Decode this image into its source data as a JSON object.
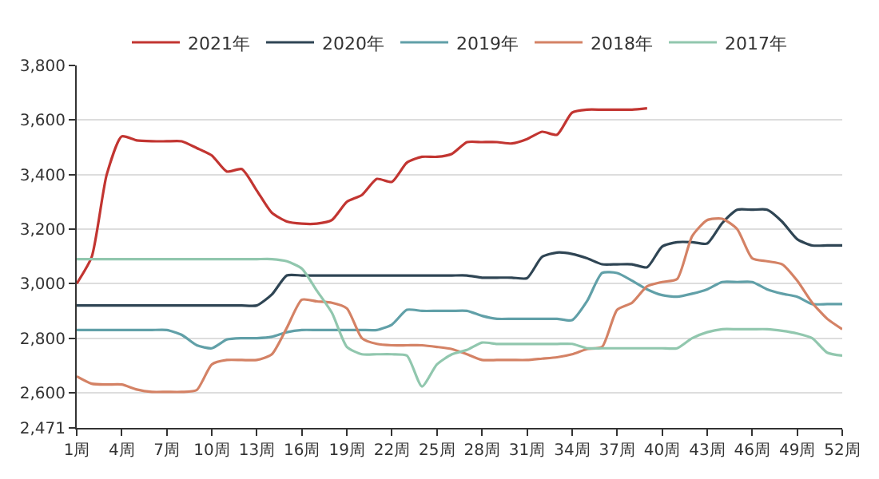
{
  "chart_data": {
    "type": "line",
    "categories": [
      "1周",
      null,
      null,
      "4周",
      null,
      null,
      "7周",
      null,
      null,
      "10周",
      null,
      null,
      "13周",
      null,
      null,
      "16周",
      null,
      null,
      "19周",
      null,
      null,
      "22周",
      null,
      null,
      "25周",
      null,
      null,
      "28周",
      null,
      null,
      "31周",
      null,
      null,
      "34周",
      null,
      null,
      "37周",
      null,
      null,
      "40周",
      null,
      null,
      "43周",
      null,
      null,
      "46周",
      null,
      null,
      "49周",
      null,
      null,
      "52周"
    ],
    "series": [
      {
        "name": "2021年",
        "color": "#c23531",
        "values": [
          3000,
          3098,
          3400,
          3540,
          3525,
          3522,
          3522,
          3522,
          3497,
          3470,
          3411,
          3420,
          3341,
          3260,
          3228,
          3220,
          3220,
          3233,
          3300,
          3325,
          3384,
          3373,
          3444,
          3465,
          3465,
          3476,
          3519,
          3519,
          3519,
          3514,
          3530,
          3557,
          3546,
          3627,
          3638,
          3638,
          3638,
          3638,
          3643,
          null,
          null,
          null,
          null,
          null,
          null,
          null,
          null,
          null,
          null,
          null,
          null,
          null
        ]
      },
      {
        "name": "2020年",
        "color": "#2f4554",
        "values": [
          2920,
          2920,
          2920,
          2920,
          2920,
          2920,
          2920,
          2920,
          2920,
          2920,
          2920,
          2920,
          2920,
          2960,
          3030,
          3030,
          3030,
          3030,
          3030,
          3030,
          3030,
          3030,
          3030,
          3030,
          3030,
          3030,
          3030,
          3022,
          3022,
          3022,
          3020,
          3098,
          3114,
          3109,
          3093,
          3071,
          3071,
          3071,
          3060,
          3136,
          3152,
          3152,
          3147,
          3222,
          3271,
          3271,
          3271,
          3227,
          3163,
          3140,
          3140,
          3140
        ]
      },
      {
        "name": "2019年",
        "color": "#61a0a8",
        "values": [
          2830,
          2830,
          2830,
          2830,
          2830,
          2830,
          2830,
          2812,
          2774,
          2763,
          2795,
          2800,
          2800,
          2805,
          2822,
          2830,
          2830,
          2830,
          2830,
          2830,
          2830,
          2850,
          2904,
          2900,
          2900,
          2900,
          2900,
          2882,
          2871,
          2871,
          2871,
          2871,
          2871,
          2866,
          2936,
          3039,
          3039,
          3011,
          2979,
          2958,
          2952,
          2963,
          2979,
          3006,
          3006,
          3006,
          2979,
          2963,
          2952,
          2925,
          2925,
          2925
        ]
      },
      {
        "name": "2018年",
        "color": "#d48265",
        "values": [
          2660,
          2633,
          2630,
          2630,
          2612,
          2603,
          2603,
          2603,
          2610,
          2704,
          2720,
          2720,
          2720,
          2741,
          2838,
          2941,
          2935,
          2930,
          2909,
          2800,
          2779,
          2774,
          2774,
          2774,
          2768,
          2760,
          2741,
          2720,
          2720,
          2720,
          2720,
          2725,
          2730,
          2741,
          2760,
          2768,
          2904,
          2930,
          2990,
          3006,
          3017,
          3174,
          3233,
          3238,
          3200,
          3093,
          3082,
          3071,
          3011,
          2930,
          2871,
          2833
        ]
      },
      {
        "name": "2017年",
        "color": "#91c7ae",
        "values": [
          3090,
          3090,
          3090,
          3090,
          3090,
          3090,
          3090,
          3090,
          3090,
          3090,
          3090,
          3090,
          3090,
          3090,
          3082,
          3055,
          2974,
          2893,
          2768,
          2741,
          2741,
          2741,
          2736,
          2623,
          2704,
          2741,
          2757,
          2784,
          2779,
          2779,
          2779,
          2779,
          2779,
          2779,
          2763,
          2763,
          2763,
          2763,
          2763,
          2763,
          2763,
          2800,
          2822,
          2833,
          2833,
          2833,
          2833,
          2827,
          2817,
          2800,
          2747,
          2736
        ]
      }
    ],
    "ylim": [
      2471,
      3800
    ],
    "yticks": [
      {
        "value": 2471,
        "label": "2,471"
      },
      {
        "value": 2600,
        "label": "2,600"
      },
      {
        "value": 2800,
        "label": "2,800"
      },
      {
        "value": 3000,
        "label": "3,000"
      },
      {
        "value": 3200,
        "label": "3,200"
      },
      {
        "value": 3400,
        "label": "3,400"
      },
      {
        "value": 3600,
        "label": "3,600"
      },
      {
        "value": 3800,
        "label": "3,800"
      }
    ],
    "grid": "y",
    "legend": "top",
    "marker": "none",
    "line_style": "solid"
  }
}
